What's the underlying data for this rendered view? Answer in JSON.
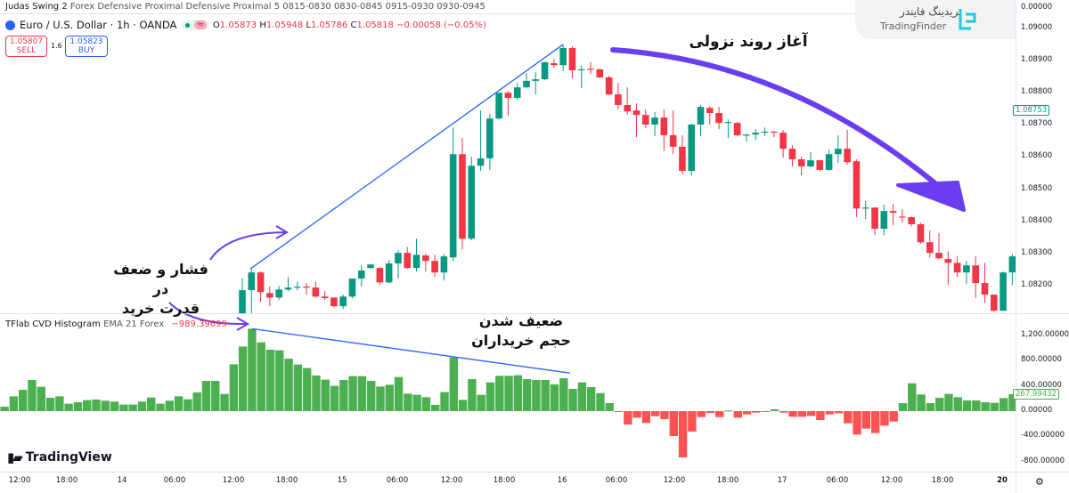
{
  "header": {
    "indicator_line_name": "Judas Swing 2",
    "indicator_line_params": "Forex Defensive Proximal Defensive Proximal 5 0815-0830 0830-0845 0915-0930 0930-0945",
    "symbol": "Euro / U.S. Dollar · 1h · OANDA",
    "market_status_icon": "green-dot",
    "waves_icon": "≈",
    "ohlc": {
      "o_label": "O",
      "o": "1.05873",
      "h_label": "H",
      "h": "1.05948",
      "l_label": "L",
      "l": "1.05786",
      "c_label": "C",
      "c": "1.05818",
      "change": "−0.00058 (−0.05%)"
    },
    "sell": {
      "price": "1.05807",
      "label": "SELL"
    },
    "buy": {
      "price": "1.05823",
      "label": "BUY"
    },
    "spread": "1.6"
  },
  "brand": {
    "fa": "تریدینگ فایندر",
    "en": "TradingFinder",
    "tradingview": "TradingView"
  },
  "price_axis": {
    "top_pane_label": "0.00000",
    "labels": [
      "1.09000",
      "1.08900",
      "1.08800",
      "1.08700",
      "1.08600",
      "1.08500",
      "1.08400",
      "1.08300",
      "1.08200"
    ],
    "current_price": "1.08753"
  },
  "indicator": {
    "name": "TFlab CVD Histogram",
    "params": "EMA 21 Forex",
    "value": "−989.39699",
    "axis_labels": [
      "1,200.00000",
      "800.00000",
      "400.00000",
      "0.00000",
      "-400.00000",
      "-800.00000"
    ],
    "current_value": "267.99432"
  },
  "time_axis": [
    "12:00",
    "18:00",
    "14",
    "06:00",
    "12:00",
    "18:00",
    "15",
    "06:00",
    "12:00",
    "18:00",
    "16",
    "06:00",
    "12:00",
    "18:00",
    "17",
    "06:00",
    "12:00",
    "18:00",
    "20"
  ],
  "annotations": {
    "downtrend": "آغاز روند نزولی",
    "pressure_line1": "فشار و ضعف در",
    "pressure_line2": "قدرت خرید",
    "weak_line1": "ضعیف شدن",
    "weak_line2": "حجم خریداران"
  },
  "colors": {
    "up": "#089981",
    "down": "#F23645",
    "hist_up": "#4CAF50",
    "hist_down": "#FF5252",
    "trendline": "#2962FF",
    "arrow": "#6B3DF0"
  },
  "chart_data": [
    {
      "type": "candlestick",
      "ylim": [
        1.081,
        1.091
      ],
      "ohlc": [
        [
          1.08114,
          1.08222,
          1.08114,
          1.08186
        ],
        [
          1.08186,
          1.08252,
          1.08114,
          1.08241
        ],
        [
          1.08241,
          1.08244,
          1.0815,
          1.0818
        ],
        [
          1.08177,
          1.08197,
          1.08136,
          1.08163
        ],
        [
          1.08163,
          1.08199,
          1.08155,
          1.08188
        ],
        [
          1.08188,
          1.08227,
          1.08183,
          1.08194
        ],
        [
          1.08194,
          1.08213,
          1.08186,
          1.08197
        ],
        [
          1.08197,
          1.08208,
          1.08172,
          1.08194
        ],
        [
          1.08194,
          1.08213,
          1.08163,
          1.08166
        ],
        [
          1.08166,
          1.08183,
          1.08155,
          1.08161
        ],
        [
          1.08163,
          1.08163,
          1.08133,
          1.08136
        ],
        [
          1.08136,
          1.08172,
          1.08127,
          1.08166
        ],
        [
          1.08166,
          1.08222,
          1.08161,
          1.08222
        ],
        [
          1.08222,
          1.08263,
          1.08197,
          1.08247
        ],
        [
          1.08255,
          1.08266,
          1.08252,
          1.08266
        ],
        [
          1.08255,
          1.08258,
          1.08202,
          1.0821
        ],
        [
          1.0821,
          1.0828,
          1.08208,
          1.08269
        ],
        [
          1.08269,
          1.0831,
          1.08222,
          1.08302
        ],
        [
          1.08302,
          1.08321,
          1.08252,
          1.08255
        ],
        [
          1.08255,
          1.08346,
          1.08244,
          1.08296
        ],
        [
          1.08294,
          1.08299,
          1.08244,
          1.08277
        ],
        [
          1.08277,
          1.08296,
          1.08227,
          1.08241
        ],
        [
          1.08241,
          1.08299,
          1.08216,
          1.08291
        ],
        [
          1.08288,
          1.08692,
          1.08277,
          1.08609
        ],
        [
          1.08609,
          1.08659,
          1.08313,
          1.08346
        ],
        [
          1.08346,
          1.08601,
          1.08341,
          1.08573
        ],
        [
          1.08573,
          1.08745,
          1.08557,
          1.08596
        ],
        [
          1.08596,
          1.08734,
          1.0856,
          1.0872
        ],
        [
          1.0872,
          1.088,
          1.08717,
          1.088
        ],
        [
          1.088,
          1.08806,
          1.08729,
          1.08784
        ],
        [
          1.08784,
          1.08831,
          1.08778,
          1.08817
        ],
        [
          1.08817,
          1.08861,
          1.08814,
          1.08837
        ],
        [
          1.08837,
          1.08864,
          1.08795,
          1.08842
        ],
        [
          1.08842,
          1.08897,
          1.08839,
          1.08895
        ],
        [
          1.08892,
          1.08906,
          1.08878,
          1.08886
        ],
        [
          1.08886,
          1.0895,
          1.08867,
          1.08939
        ],
        [
          1.08939,
          1.08945,
          1.08845,
          1.0887
        ],
        [
          1.0887,
          1.08884,
          1.08814,
          1.08873
        ],
        [
          1.08875,
          1.08895,
          1.08859,
          1.08873
        ],
        [
          1.08873,
          1.08875,
          1.08845,
          1.08848
        ],
        [
          1.08848,
          1.08853,
          1.08792,
          1.08795
        ],
        [
          1.08795,
          1.08831,
          1.08748,
          1.08762
        ],
        [
          1.08762,
          1.08817,
          1.08731,
          1.08742
        ],
        [
          1.08745,
          1.08767,
          1.08662,
          1.08731
        ],
        [
          1.08731,
          1.08748,
          1.0869,
          1.08701
        ],
        [
          1.08701,
          1.0874,
          1.08665,
          1.08723
        ],
        [
          1.08723,
          1.08748,
          1.08618,
          1.08668
        ],
        [
          1.08668,
          1.08745,
          1.08609,
          1.08632
        ],
        [
          1.08632,
          1.08668,
          1.08546,
          1.08557
        ],
        [
          1.08557,
          1.08704,
          1.08543,
          1.08701
        ],
        [
          1.08701,
          1.08762,
          1.08665,
          1.08756
        ],
        [
          1.08753,
          1.08759,
          1.08701,
          1.08737
        ],
        [
          1.08737,
          1.08756,
          1.08687,
          1.08706
        ],
        [
          1.08706,
          1.08717,
          1.08659,
          1.08709
        ],
        [
          1.08706,
          1.08709,
          1.08665,
          1.08668
        ],
        [
          1.08668,
          1.08673,
          1.08648,
          1.0867
        ],
        [
          1.0867,
          1.08687,
          1.08654,
          1.08676
        ],
        [
          1.08676,
          1.08692,
          1.08665,
          1.08679
        ],
        [
          1.08679,
          1.08681,
          1.08662,
          1.08676
        ],
        [
          1.08676,
          1.08684,
          1.08598,
          1.08626
        ],
        [
          1.08626,
          1.08637,
          1.08571,
          1.08593
        ],
        [
          1.08593,
          1.08601,
          1.08543,
          1.08571
        ],
        [
          1.08571,
          1.08615,
          1.08568,
          1.0859
        ],
        [
          1.0859,
          1.0859,
          1.08557,
          1.0856
        ],
        [
          1.0856,
          1.08623,
          1.08557,
          1.08609
        ],
        [
          1.08609,
          1.08668,
          1.08582,
          1.08626
        ],
        [
          1.08626,
          1.08684,
          1.08576,
          1.08584
        ],
        [
          1.08587,
          1.08593,
          1.08413,
          1.0844
        ],
        [
          1.0844,
          1.08463,
          1.08407,
          1.08443
        ],
        [
          1.08443,
          1.08443,
          1.08357,
          1.08377
        ],
        [
          1.08377,
          1.08452,
          1.08357,
          1.08432
        ],
        [
          1.08432,
          1.08454,
          1.08388,
          1.08427
        ],
        [
          1.08415,
          1.08438,
          1.08396,
          1.08413
        ],
        [
          1.08413,
          1.08415,
          1.08385,
          1.08391
        ],
        [
          1.08391,
          1.08396,
          1.08331,
          1.08335
        ],
        [
          1.08335,
          1.08371,
          1.08288,
          1.08302
        ],
        [
          1.08302,
          1.08363,
          1.08283,
          1.08285
        ],
        [
          1.08283,
          1.08307,
          1.08202,
          1.08271
        ],
        [
          1.08271,
          1.08291,
          1.08227,
          1.08241
        ],
        [
          1.08241,
          1.08277,
          1.08205,
          1.08263
        ],
        [
          1.08263,
          1.08291,
          1.08161,
          1.08208
        ],
        [
          1.08208,
          1.08271,
          1.08147,
          1.08172
        ],
        [
          1.08172,
          1.08172,
          1.08119,
          1.08122
        ],
        [
          1.08122,
          1.08244,
          1.08122,
          1.08241
        ],
        [
          1.08241,
          1.08299,
          1.08202,
          1.08291
        ]
      ],
      "trendline": [
        [
          1.08252,
          1.0895
        ]
      ]
    },
    {
      "type": "bar",
      "ylim": [
        -900,
        1300
      ],
      "values": [
        70,
        234,
        337,
        491,
        384,
        211,
        234,
        117,
        140,
        173,
        183,
        164,
        150,
        103,
        103,
        150,
        215,
        117,
        164,
        234,
        187,
        295,
        477,
        477,
        271,
        739,
        1020,
        1301,
        1086,
        969,
        959,
        828,
        735,
        679,
        562,
        496,
        398,
        491,
        552,
        552,
        477,
        388,
        416,
        538,
        276,
        257,
        220,
        98,
        300,
        847,
        178,
        505,
        257,
        454,
        557,
        557,
        566,
        505,
        491,
        491,
        421,
        519,
        351,
        454,
        379,
        285,
        126,
        -9,
        -211,
        -103,
        -187,
        -80,
        -126,
        -393,
        -730,
        -323,
        -94,
        -28,
        -94,
        9,
        -103,
        -51,
        -23,
        -14,
        28,
        -23,
        -89,
        -89,
        -75,
        -140,
        -51,
        -33,
        -192,
        -370,
        -276,
        -346,
        -229,
        -164,
        126,
        440,
        262,
        126,
        211,
        271,
        220,
        168,
        168,
        140,
        131,
        206,
        268
      ]
    }
  ]
}
